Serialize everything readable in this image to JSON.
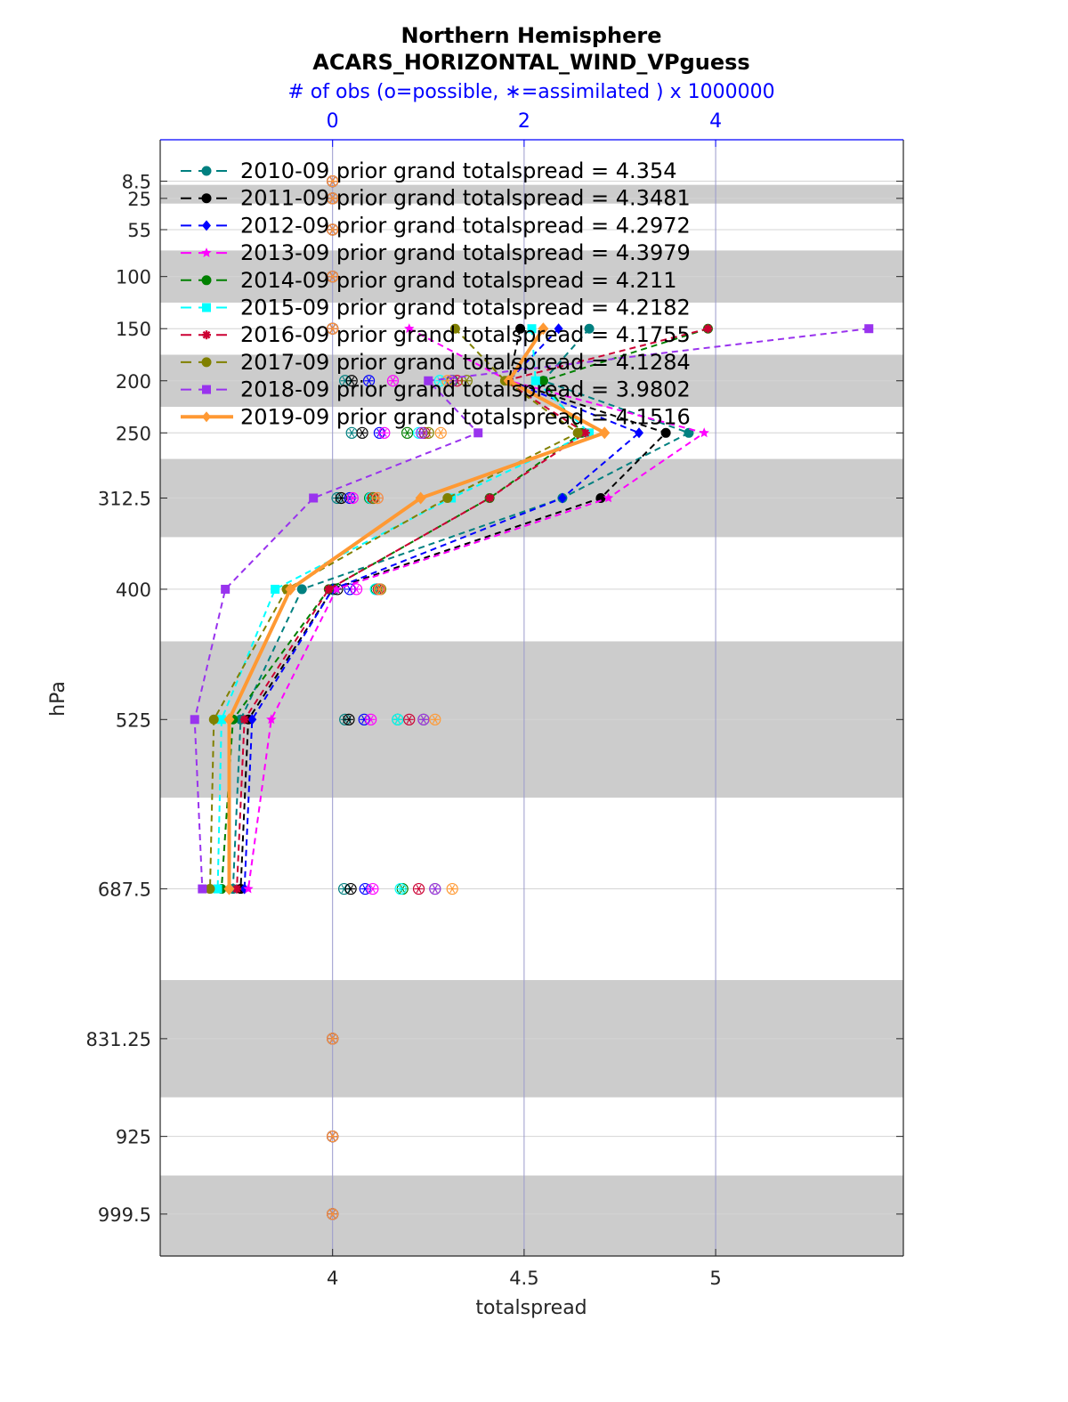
{
  "chart_data": {
    "type": "line",
    "title": "Northern Hemisphere",
    "subtitle": "ACARS_HORIZONTAL_WIND_VPguess",
    "top_axis_label": "# of obs (o=possible, ∗=assimilated ) x 1000000",
    "top_axis_ticks": [
      "0",
      "2",
      "4"
    ],
    "top_axis_values": [
      0,
      2,
      4
    ],
    "xlabel": "totalspread",
    "ylabel": "hPa",
    "xlim": [
      3.55,
      5.49
    ],
    "x_ticks": [
      "4",
      "4.5",
      "5"
    ],
    "x_tick_values": [
      4,
      4.5,
      5
    ],
    "ylim": [
      -31.25,
      1039.75
    ],
    "y_ticks": [
      "8.5",
      "25",
      "55",
      "100",
      "150",
      "200",
      "250",
      "312.5",
      "400",
      "525",
      "687.5",
      "831.25",
      "925",
      "999.5"
    ],
    "y_tick_values": [
      8.5,
      25,
      55,
      100,
      150,
      200,
      250,
      312.5,
      400,
      525,
      687.5,
      831.25,
      925,
      999.5
    ],
    "shaded_bands": [
      [
        12,
        30
      ],
      [
        75,
        125
      ],
      [
        175,
        225
      ],
      [
        275,
        350
      ],
      [
        450,
        600
      ],
      [
        775,
        887.5
      ],
      [
        962.5,
        1039.75
      ]
    ],
    "grid": true,
    "legend_placement": "top-left",
    "levels": [
      150,
      200,
      250,
      312.5,
      400,
      525,
      687.5
    ],
    "series": [
      {
        "name": "2010-09 prior grand totalspread = 4.354",
        "color": "#008080",
        "marker": "circle",
        "line": "dashed",
        "values": [
          4.67,
          4.55,
          4.93,
          4.6,
          3.92,
          3.76,
          3.74
        ]
      },
      {
        "name": "2011-09 prior grand totalspread = 4.3481",
        "color": "#000000",
        "marker": "circle",
        "line": "dashed",
        "values": [
          4.49,
          4.46,
          4.87,
          4.7,
          4.0,
          3.78,
          3.76
        ]
      },
      {
        "name": "2012-09 prior grand totalspread = 4.2972",
        "color": "#0000ff",
        "marker": "diamond",
        "line": "dashed",
        "values": [
          4.59,
          4.46,
          4.8,
          4.6,
          4.0,
          3.79,
          3.77
        ]
      },
      {
        "name": "2013-09 prior grand totalspread = 4.3979",
        "color": "#ff00ff",
        "marker": "star",
        "line": "dashed",
        "values": [
          4.2,
          4.46,
          4.97,
          4.72,
          4.01,
          3.84,
          3.78
        ]
      },
      {
        "name": "2014-09 prior grand totalspread = 4.211",
        "color": "#008000",
        "marker": "circle",
        "line": "dashed",
        "values": [
          4.98,
          4.55,
          4.65,
          4.41,
          3.99,
          3.74,
          3.71
        ]
      },
      {
        "name": "2015-09 prior grand totalspread = 4.2182",
        "color": "#00ffff",
        "marker": "square",
        "line": "dashed",
        "values": [
          4.52,
          4.53,
          4.67,
          4.31,
          3.85,
          3.71,
          3.7
        ]
      },
      {
        "name": "2016-09 prior grand totalspread = 4.1755",
        "color": "#cc0033",
        "marker": "asterisk",
        "line": "dashed",
        "values": [
          4.98,
          4.45,
          4.66,
          4.41,
          3.99,
          3.77,
          3.75
        ]
      },
      {
        "name": "2017-09 prior grand totalspread = 4.1284",
        "color": "#808000",
        "marker": "circle",
        "line": "dashed",
        "values": [
          4.32,
          4.45,
          4.64,
          4.3,
          3.88,
          3.69,
          3.68
        ]
      },
      {
        "name": "2018-09 prior grand totalspread = 3.9802",
        "color": "#9933ee",
        "marker": "square",
        "line": "dashed",
        "values": [
          5.4,
          4.25,
          4.38,
          3.95,
          3.72,
          3.64,
          3.66
        ]
      },
      {
        "name": "2019-09 prior grand totalspread = 4.1516",
        "color": "#ff9933",
        "marker": "diamond",
        "line": "solid",
        "values": [
          4.55,
          4.46,
          4.71,
          4.23,
          3.89,
          3.73,
          3.73
        ]
      }
    ],
    "obs_counts_levels": [
      8.5,
      25,
      55,
      100,
      150,
      200,
      250,
      312.5,
      400,
      525,
      687.5,
      831.25,
      925,
      999.5
    ],
    "obs_counts": [
      {
        "color": "#008080",
        "values": [
          0,
          0,
          0,
          0,
          0,
          0.13,
          0.2,
          0.05,
          0.01,
          0.13,
          0.12,
          0,
          0,
          0
        ]
      },
      {
        "color": "#000000",
        "values": [
          0,
          0,
          0,
          0,
          0,
          0.2,
          0.31,
          0.09,
          0.05,
          0.17,
          0.19,
          0,
          0,
          0
        ]
      },
      {
        "color": "#0000ff",
        "values": [
          0,
          0,
          0,
          0,
          0,
          0.38,
          0.49,
          0.18,
          0.18,
          0.33,
          0.34,
          0,
          0,
          0
        ]
      },
      {
        "color": "#ff00ff",
        "values": [
          0,
          0,
          0,
          0,
          0,
          0.63,
          0.54,
          0.21,
          0.25,
          0.4,
          0.42,
          0,
          0,
          0
        ]
      },
      {
        "color": "#008000",
        "values": [
          0,
          0,
          0,
          0,
          0,
          1.25,
          0.78,
          0.39,
          0.46,
          0.68,
          0.73,
          0,
          0,
          0
        ]
      },
      {
        "color": "#00ffff",
        "values": [
          0,
          0,
          0,
          0,
          0,
          1.12,
          0.9,
          0.4,
          0.45,
          0.68,
          0.71,
          0,
          0,
          0
        ]
      },
      {
        "color": "#cc0033",
        "values": [
          0,
          0,
          0,
          0,
          0,
          1.3,
          0.96,
          0.42,
          0.48,
          0.8,
          0.9,
          0,
          0,
          0
        ]
      },
      {
        "color": "#808000",
        "values": [
          0,
          0,
          0,
          0,
          0,
          1.4,
          1.0,
          0.43,
          0.5,
          0.95,
          1.07,
          0,
          0,
          0
        ]
      },
      {
        "color": "#9933ee",
        "values": [
          0,
          0,
          0,
          0,
          0,
          1.24,
          0.93,
          0.47,
          0.49,
          0.95,
          1.07,
          0,
          0,
          0
        ]
      },
      {
        "color": "#ff9933",
        "values": [
          0,
          0,
          0,
          0,
          0,
          1.2,
          1.13,
          0.47,
          0.49,
          1.07,
          1.25,
          0,
          0,
          0
        ]
      }
    ]
  }
}
